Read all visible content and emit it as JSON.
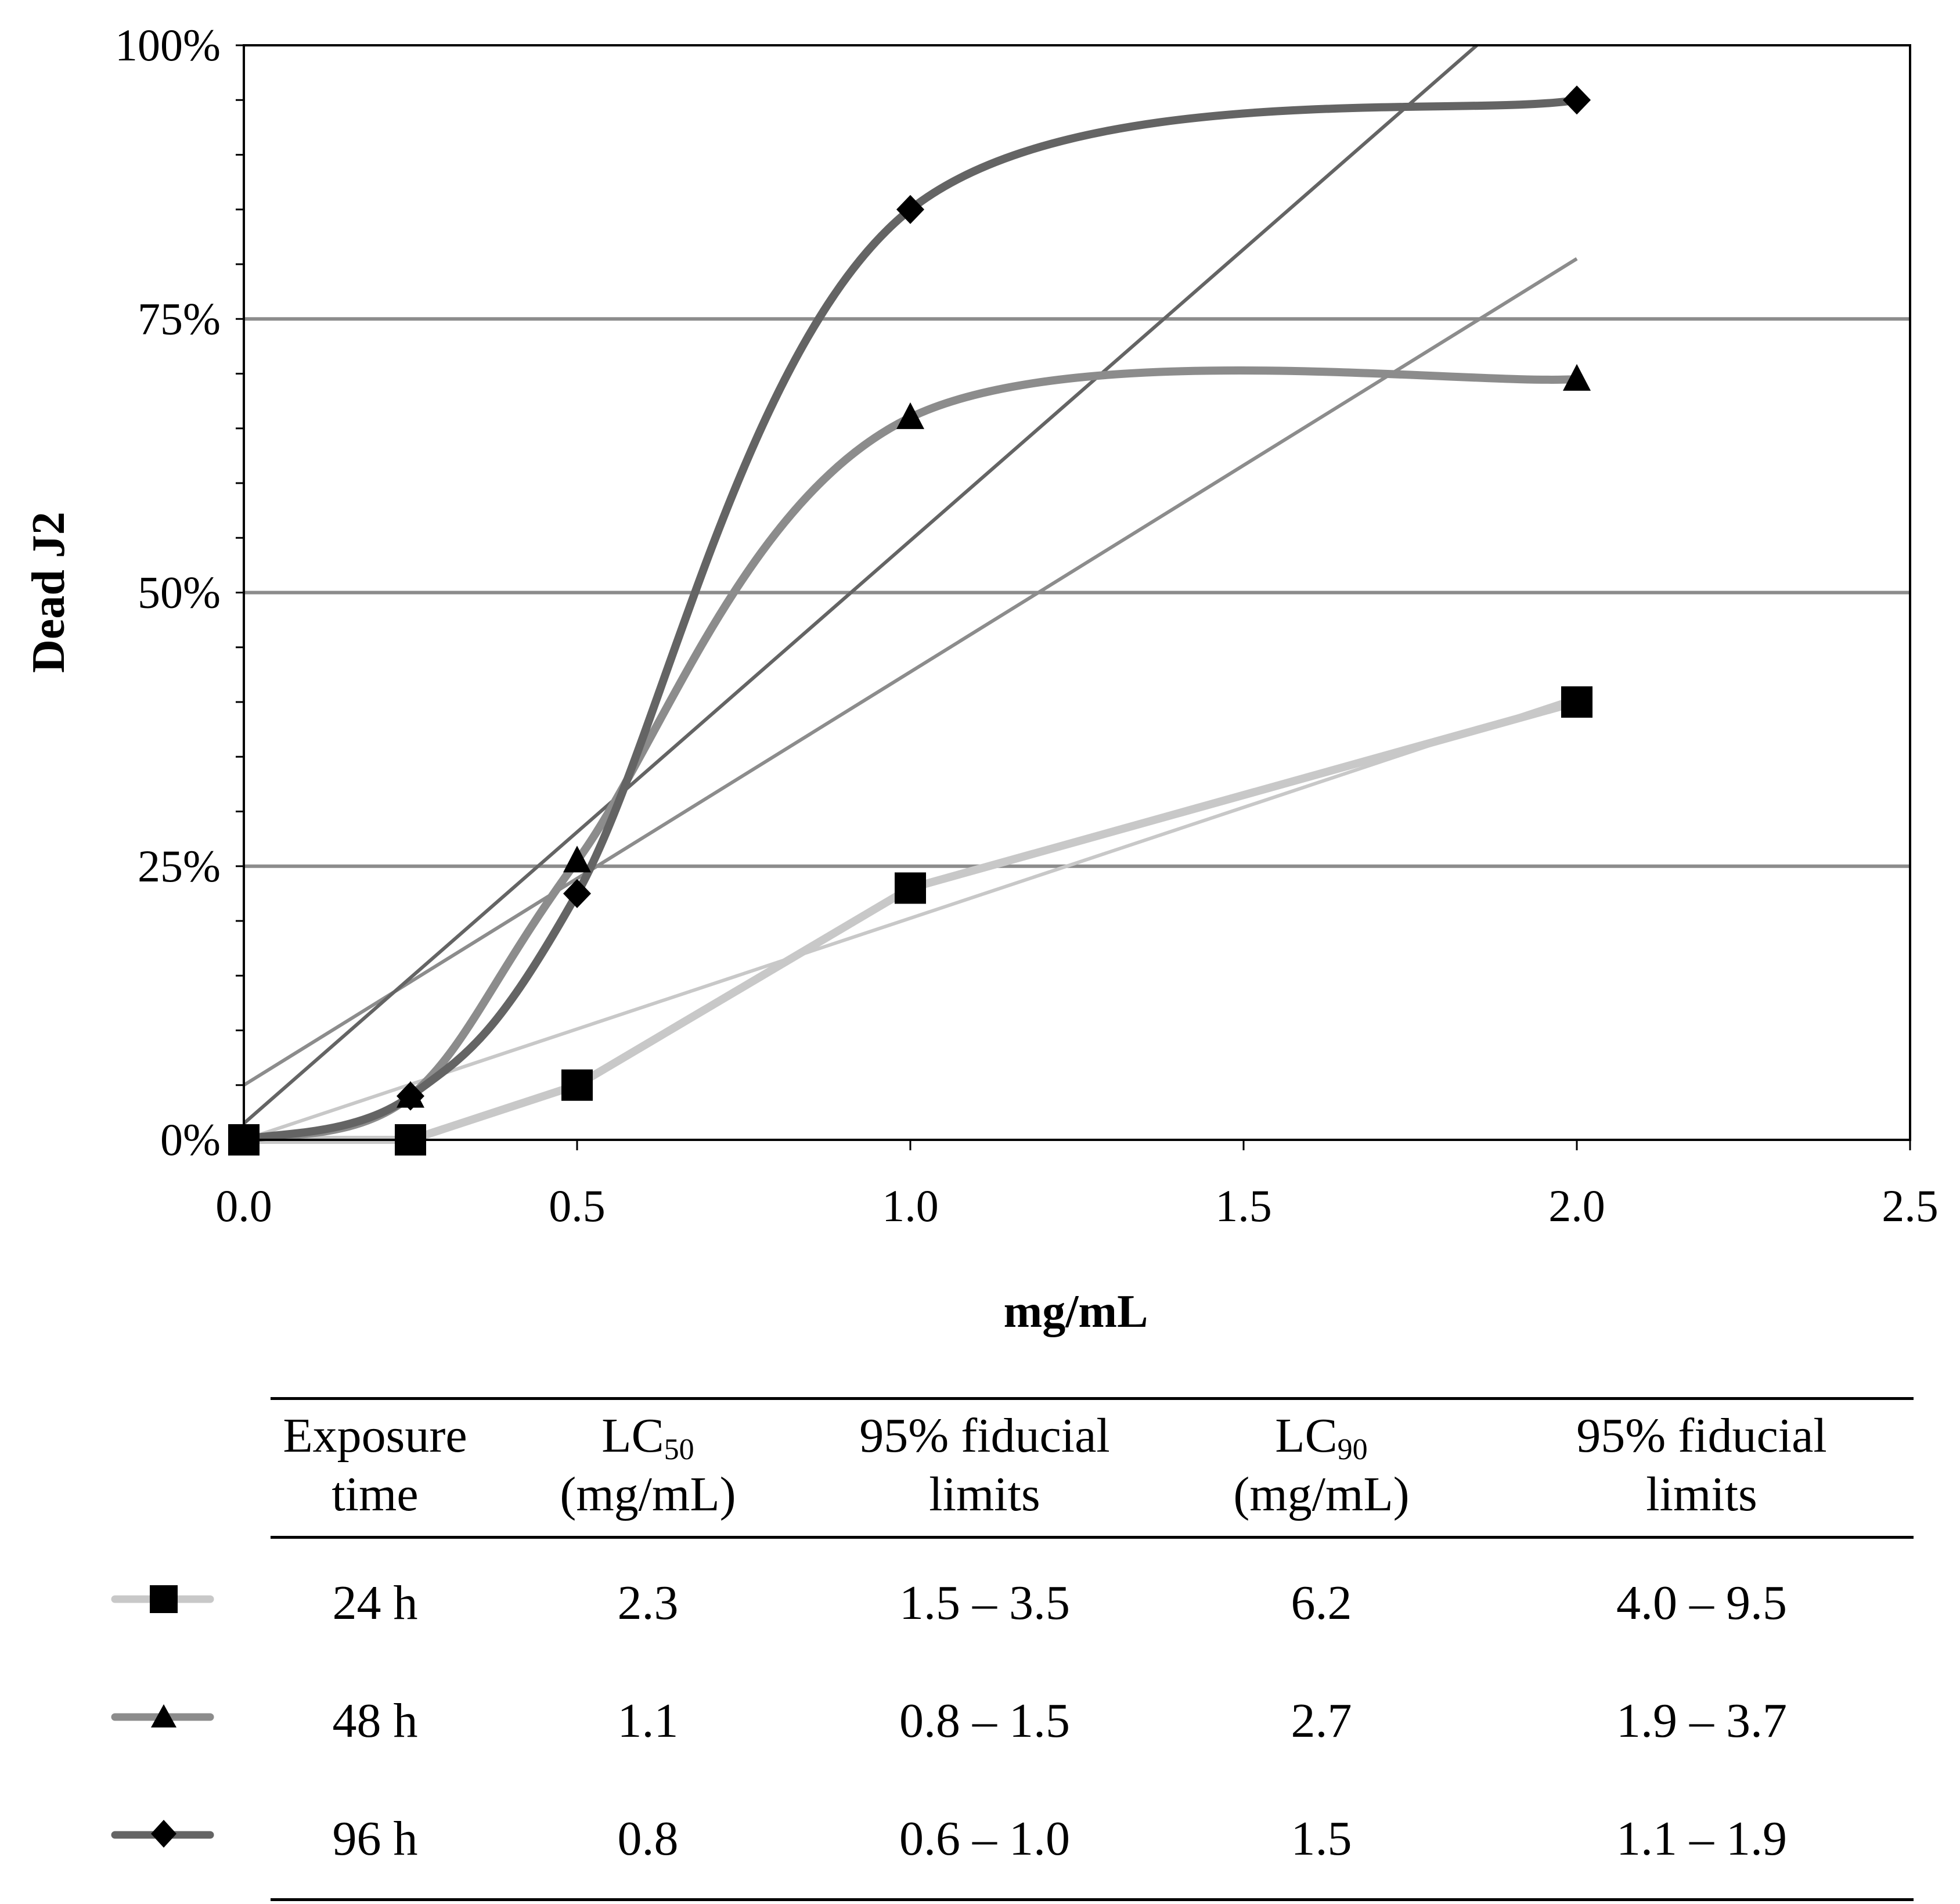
{
  "chart_data": {
    "type": "line",
    "title": "",
    "xlabel": "mg/mL",
    "ylabel": "Dead J2",
    "xlim": [
      0,
      2.5
    ],
    "ylim": [
      0,
      100
    ],
    "x_ticks": [
      "0.0",
      "0.5",
      "1.0",
      "1.5",
      "2.0",
      "2.5"
    ],
    "y_ticks": [
      "0%",
      "25%",
      "50%",
      "75%",
      "100%"
    ],
    "series": [
      {
        "name": "24 h",
        "marker": "square",
        "color": "#c8c8c8",
        "x": [
          0,
          0.25,
          0.5,
          1.0,
          2.0
        ],
        "y": [
          0,
          0,
          5,
          23,
          40
        ],
        "trend": {
          "intercept": 0,
          "end": 40.5
        }
      },
      {
        "name": "48 h",
        "marker": "triangle",
        "color": "#8c8c8c",
        "x": [
          0,
          0.25,
          0.5,
          1.0,
          2.0
        ],
        "y": [
          0,
          4,
          25.5,
          66,
          69.5
        ],
        "trend": {
          "intercept": 5,
          "end": 80.5
        }
      },
      {
        "name": "96 h",
        "marker": "diamond",
        "color": "#646464",
        "x": [
          0,
          0.25,
          0.5,
          1.0,
          2.0
        ],
        "y": [
          0,
          4,
          22.5,
          85,
          95
        ],
        "trend": {
          "intercept": 1.5,
          "end": 100,
          "end_x": 1.85
        }
      }
    ]
  },
  "table": {
    "headers": [
      {
        "line1": "Exposure",
        "line2": "time"
      },
      {
        "line1": "LC",
        "sub": "50",
        "line2": "(mg/mL)"
      },
      {
        "line1": "95% fiducial",
        "line2": "limits"
      },
      {
        "line1": "LC",
        "sub": "90",
        "line2": "(mg/mL)"
      },
      {
        "line1": "95% fiducial",
        "line2": "limits"
      }
    ],
    "rows": [
      {
        "marker": "square",
        "color": "#c8c8c8",
        "cells": [
          "24 h",
          "2.3",
          "1.5 – 3.5",
          "6.2",
          "4.0 – 9.5"
        ]
      },
      {
        "marker": "triangle",
        "color": "#8c8c8c",
        "cells": [
          "48 h",
          "1.1",
          "0.8 – 1.5",
          "2.7",
          "1.9 – 3.7"
        ]
      },
      {
        "marker": "diamond",
        "color": "#646464",
        "cells": [
          "96 h",
          "0.8",
          "0.6 – 1.0",
          "1.5",
          "1.1 – 1.9"
        ]
      }
    ]
  }
}
